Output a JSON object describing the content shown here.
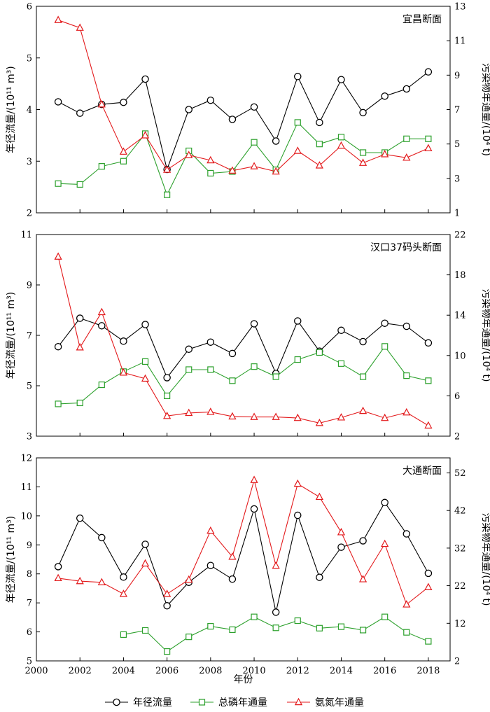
{
  "xlabel": "年份",
  "x_ticks": [
    2000,
    2002,
    2004,
    2006,
    2008,
    2010,
    2012,
    2014,
    2016,
    2018
  ],
  "xlim": [
    2000,
    2019
  ],
  "ylabel_left": "年径流量/(10¹¹ m³)",
  "ylabel_right": "污染物年通量/(10⁴ t)",
  "legend": [
    {
      "name": "年径流量",
      "color": "#000000",
      "marker": "circle"
    },
    {
      "name": "总磷年通量",
      "color": "#2ca02c",
      "marker": "square"
    },
    {
      "name": "氨氮年通量",
      "color": "#e31a1c",
      "marker": "triangle"
    }
  ],
  "colors": {
    "runoff": "#000000",
    "tp": "#2ca02c",
    "nh": "#e31a1c"
  },
  "chart_data": [
    {
      "type": "line",
      "title": "宜昌断面",
      "x": [
        2001,
        2002,
        2003,
        2004,
        2005,
        2006,
        2007,
        2008,
        2009,
        2010,
        2011,
        2012,
        2013,
        2014,
        2015,
        2016,
        2017,
        2018
      ],
      "left_ylim": [
        2,
        6
      ],
      "left_ticks": [
        2,
        3,
        4,
        5,
        6
      ],
      "right_ylim": [
        1,
        13
      ],
      "right_ticks": [
        1,
        3,
        5,
        7,
        9,
        11,
        13
      ],
      "series": [
        {
          "name": "年径流量",
          "axis": "left",
          "values": [
            4.15,
            3.93,
            4.1,
            4.14,
            4.59,
            2.84,
            4.0,
            4.18,
            3.81,
            4.05,
            3.39,
            4.64,
            3.75,
            4.58,
            3.94,
            4.26,
            4.4,
            4.73
          ]
        },
        {
          "name": "总磷年通量",
          "axis": "right",
          "values": [
            2.7,
            2.65,
            3.7,
            4.0,
            5.6,
            2.05,
            4.6,
            3.3,
            3.4,
            5.1,
            3.5,
            6.25,
            5.0,
            5.4,
            4.5,
            4.5,
            5.3,
            5.3
          ]
        },
        {
          "name": "氨氮年通量",
          "axis": "right",
          "values": [
            12.2,
            11.75,
            7.3,
            4.55,
            5.5,
            3.5,
            4.35,
            4.05,
            3.45,
            3.7,
            3.4,
            4.6,
            3.75,
            4.9,
            3.9,
            4.4,
            4.2,
            4.75
          ]
        }
      ]
    },
    {
      "type": "line",
      "title": "汉口37码头断面",
      "x": [
        2001,
        2002,
        2003,
        2004,
        2005,
        2006,
        2007,
        2008,
        2009,
        2010,
        2011,
        2012,
        2013,
        2014,
        2015,
        2016,
        2017,
        2018
      ],
      "left_ylim": [
        3,
        11
      ],
      "left_ticks": [
        3,
        5,
        7,
        9,
        11
      ],
      "right_ylim": [
        2,
        22
      ],
      "right_ticks": [
        2,
        6,
        10,
        14,
        18,
        22
      ],
      "series": [
        {
          "name": "年径流量",
          "axis": "left",
          "values": [
            6.55,
            7.68,
            7.38,
            6.77,
            7.43,
            5.32,
            6.45,
            6.73,
            6.28,
            7.46,
            5.49,
            7.57,
            6.37,
            7.2,
            6.75,
            7.48,
            7.36,
            6.7
          ]
        },
        {
          "name": "总磷年通量",
          "axis": "right",
          "values": [
            5.2,
            5.3,
            7.1,
            8.4,
            9.4,
            6.0,
            8.6,
            8.6,
            7.5,
            8.9,
            7.9,
            9.6,
            10.3,
            9.2,
            7.9,
            10.9,
            8.0,
            7.5
          ]
        },
        {
          "name": "氨氮年通量",
          "axis": "right",
          "values": [
            19.8,
            10.8,
            14.3,
            8.3,
            7.7,
            4.0,
            4.3,
            4.4,
            3.95,
            3.9,
            3.9,
            3.8,
            3.3,
            3.85,
            4.5,
            3.8,
            4.35,
            3.05
          ]
        }
      ]
    },
    {
      "type": "line",
      "title": "大通断面",
      "x": [
        2001,
        2002,
        2003,
        2004,
        2005,
        2006,
        2007,
        2008,
        2009,
        2010,
        2011,
        2012,
        2013,
        2014,
        2015,
        2016,
        2017,
        2018
      ],
      "left_ylim": [
        5,
        12
      ],
      "left_ticks": [
        5,
        6,
        7,
        8,
        9,
        10,
        11,
        12
      ],
      "right_ylim": [
        2,
        56
      ],
      "right_ticks": [
        2,
        12,
        22,
        32,
        42,
        52
      ],
      "series": [
        {
          "name": "年径流量",
          "axis": "left",
          "values": [
            8.25,
            9.92,
            9.25,
            7.89,
            9.02,
            6.9,
            7.71,
            8.29,
            7.82,
            10.24,
            6.68,
            10.02,
            7.88,
            8.92,
            9.14,
            10.46,
            9.38,
            8.02
          ]
        },
        {
          "name": "总磷年通量",
          "axis": "right",
          "values": [
            null,
            null,
            null,
            9.0,
            10.1,
            4.5,
            8.4,
            11.2,
            10.3,
            13.7,
            10.8,
            12.7,
            10.7,
            11.1,
            10.2,
            13.7,
            9.6,
            7.2
          ]
        },
        {
          "name": "氨氮年通量",
          "axis": "right",
          "values": [
            24.0,
            23.2,
            22.9,
            19.8,
            27.9,
            19.8,
            23.6,
            36.6,
            29.7,
            50.1,
            27.3,
            49.1,
            45.6,
            36.2,
            23.7,
            33.1,
            17.0,
            21.6
          ]
        }
      ]
    }
  ]
}
